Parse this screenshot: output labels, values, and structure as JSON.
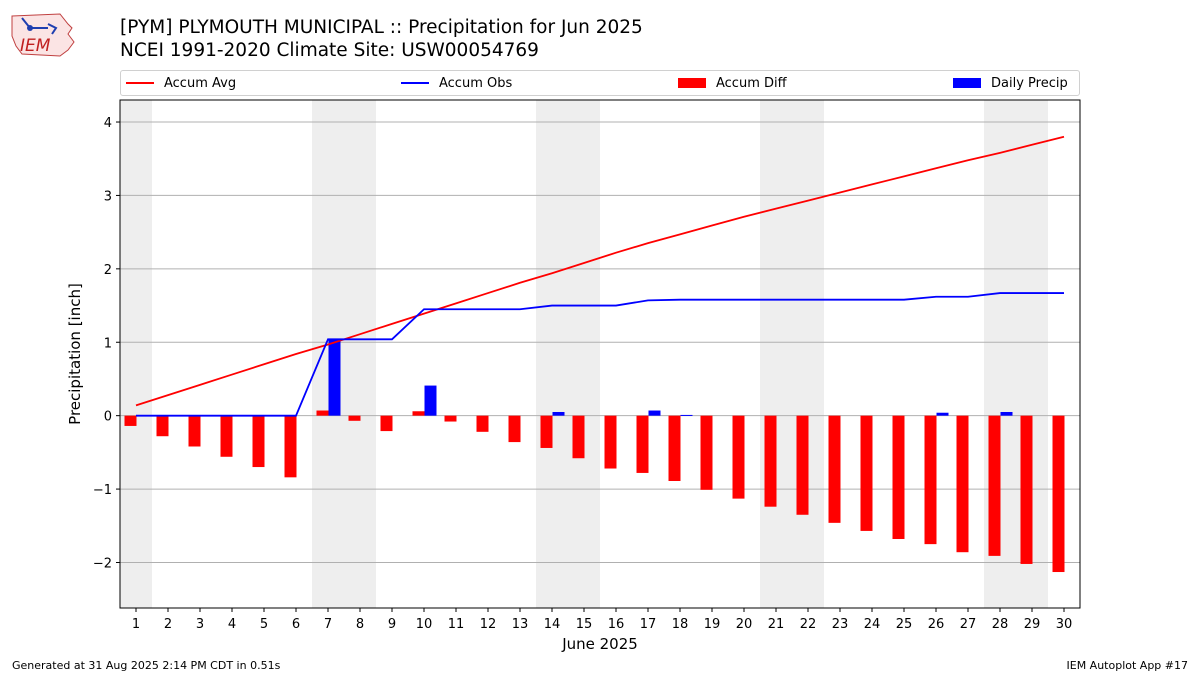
{
  "header": {
    "title_line1": "[PYM] PLYMOUTH MUNICIPAL :: Precipitation for Jun 2025",
    "title_line2": "NCEI 1991-2020 Climate Site: USW00054769",
    "logo_text": "IEM"
  },
  "footer": {
    "left": "Generated at 31 Aug 2025 2:14 PM CDT in 0.51s",
    "right": "IEM Autoplot App #17"
  },
  "chart_data": {
    "type": "bar",
    "title": "[PYM] PLYMOUTH MUNICIPAL :: Precipitation for Jun 2025",
    "subtitle": "NCEI 1991-2020 Climate Site: USW00054769",
    "xlabel": "June 2025",
    "ylabel": "Precipitation [inch]",
    "ylim": [
      -2.62,
      4.3
    ],
    "yticks": [
      -2,
      -1,
      0,
      1,
      2,
      3,
      4
    ],
    "ytick_labels": [
      "−2",
      "−1",
      "0",
      "1",
      "2",
      "3",
      "4"
    ],
    "grid": "y",
    "legend_position": "top",
    "weekend_shading_color": "#eeeeee",
    "weekend_days": [
      1,
      7,
      8,
      14,
      15,
      21,
      22,
      28,
      29
    ],
    "x": [
      1,
      2,
      3,
      4,
      5,
      6,
      7,
      8,
      9,
      10,
      11,
      12,
      13,
      14,
      15,
      16,
      17,
      18,
      19,
      20,
      21,
      22,
      23,
      24,
      25,
      26,
      27,
      28,
      29,
      30
    ],
    "series": [
      {
        "name": "Accum Avg",
        "kind": "line",
        "color": "#ff0000",
        "values": [
          0.14,
          0.28,
          0.42,
          0.56,
          0.7,
          0.84,
          0.97,
          1.11,
          1.25,
          1.39,
          1.53,
          1.67,
          1.81,
          1.94,
          2.08,
          2.22,
          2.35,
          2.47,
          2.59,
          2.71,
          2.82,
          2.93,
          3.04,
          3.15,
          3.26,
          3.37,
          3.48,
          3.58,
          3.69,
          3.8
        ]
      },
      {
        "name": "Accum Obs",
        "kind": "line",
        "color": "#0000ff",
        "values": [
          0,
          0,
          0,
          0,
          0,
          0,
          1.04,
          1.04,
          1.04,
          1.45,
          1.45,
          1.45,
          1.45,
          1.5,
          1.5,
          1.5,
          1.57,
          1.58,
          1.58,
          1.58,
          1.58,
          1.58,
          1.58,
          1.58,
          1.58,
          1.62,
          1.62,
          1.67,
          1.67,
          1.67
        ]
      },
      {
        "name": "Accum Diff",
        "kind": "bar",
        "color": "#ff0000",
        "values": [
          -0.14,
          -0.28,
          -0.42,
          -0.56,
          -0.7,
          -0.84,
          0.07,
          -0.07,
          -0.21,
          0.06,
          -0.08,
          -0.22,
          -0.36,
          -0.44,
          -0.58,
          -0.72,
          -0.78,
          -0.89,
          -1.01,
          -1.13,
          -1.24,
          -1.35,
          -1.46,
          -1.57,
          -1.68,
          -1.75,
          -1.86,
          -1.91,
          -2.02,
          -2.13
        ]
      },
      {
        "name": "Daily Precip",
        "kind": "bar",
        "color": "#0000ff",
        "values": [
          0,
          0,
          0,
          0,
          0,
          0,
          1.04,
          0,
          0,
          0.41,
          0,
          0,
          0,
          0.05,
          0,
          0,
          0.07,
          0.01,
          0,
          0,
          0,
          0,
          0,
          0,
          0,
          0.04,
          0,
          0.05,
          0,
          0
        ]
      }
    ]
  }
}
